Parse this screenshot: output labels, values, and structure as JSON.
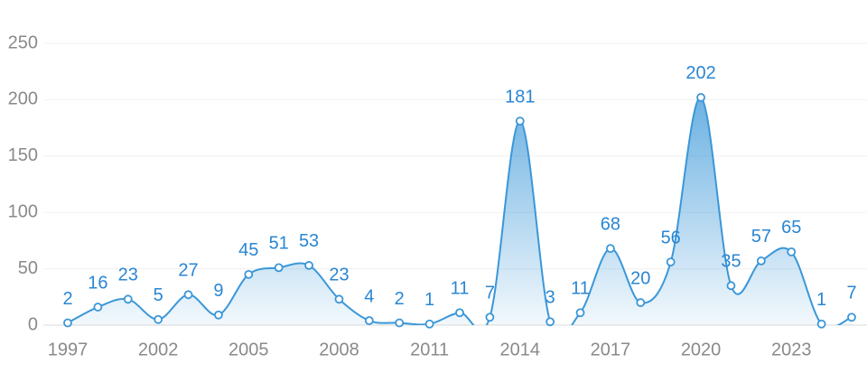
{
  "chart_data": {
    "type": "line",
    "categories": [
      "1997",
      null,
      null,
      "2002",
      null,
      null,
      "2005",
      null,
      null,
      "2008",
      null,
      null,
      "2011",
      null,
      null,
      "2014",
      null,
      null,
      "2017",
      null,
      null,
      "2020",
      null,
      null,
      "2023",
      null,
      null
    ],
    "values": [
      2,
      16,
      23,
      5,
      27,
      9,
      45,
      51,
      53,
      23,
      4,
      2,
      1,
      11,
      7,
      181,
      3,
      11,
      68,
      20,
      56,
      202,
      35,
      57,
      65,
      1,
      7
    ],
    "color": "#3a97d8",
    "ylim": [
      0,
      250
    ],
    "yticks": [
      0,
      50,
      100,
      150,
      200,
      250
    ],
    "grid": true
  }
}
